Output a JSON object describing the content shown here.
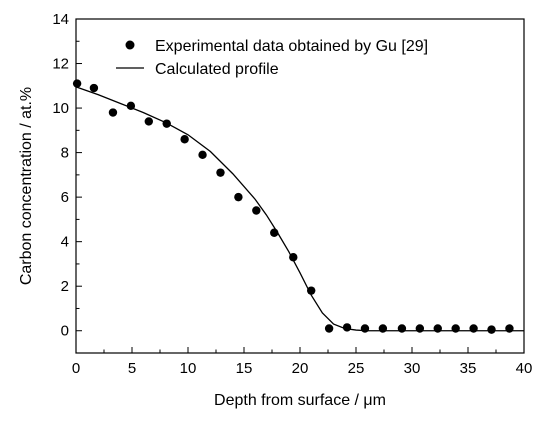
{
  "chart_data": {
    "type": "scatter",
    "title": "",
    "xlabel": "Depth from surface / μm",
    "ylabel": "Carbon concentration / at.%",
    "xlim": [
      0,
      40
    ],
    "ylim": [
      -1,
      14
    ],
    "xticks": [
      0,
      5,
      10,
      15,
      20,
      25,
      30,
      35,
      40
    ],
    "yticks": [
      0,
      2,
      4,
      6,
      8,
      10,
      12,
      14
    ],
    "grid": false,
    "legend_position": "top",
    "series": [
      {
        "name": "Experimental data obtained by Gu [29]",
        "kind": "scatter",
        "marker": "filled-circle",
        "color": "#000000",
        "x": [
          0.1,
          1.6,
          3.3,
          4.9,
          6.5,
          8.1,
          9.7,
          11.3,
          12.9,
          14.5,
          16.1,
          17.7,
          19.4,
          21.0,
          22.6,
          24.2,
          25.8,
          27.4,
          29.1,
          30.7,
          32.3,
          33.9,
          35.5,
          37.1,
          38.7
        ],
        "y": [
          11.1,
          10.9,
          9.8,
          10.1,
          9.4,
          9.3,
          8.6,
          7.9,
          7.1,
          6.0,
          5.4,
          4.4,
          3.3,
          1.8,
          0.1,
          0.15,
          0.1,
          0.1,
          0.1,
          0.1,
          0.1,
          0.1,
          0.1,
          0.05,
          0.1
        ]
      },
      {
        "name": "Calculated profile",
        "kind": "line",
        "color": "#000000",
        "x": [
          0,
          2,
          4,
          6,
          8,
          10,
          12,
          14,
          16,
          17,
          18,
          19,
          20,
          21,
          22,
          23,
          24,
          25,
          26,
          28,
          30,
          35,
          40
        ],
        "y": [
          10.95,
          10.6,
          10.2,
          9.8,
          9.35,
          8.8,
          8.05,
          7.05,
          5.9,
          5.2,
          4.4,
          3.55,
          2.6,
          1.6,
          0.8,
          0.3,
          0.1,
          0.03,
          0.0,
          0.0,
          0.0,
          0.0,
          0.0
        ]
      }
    ]
  }
}
